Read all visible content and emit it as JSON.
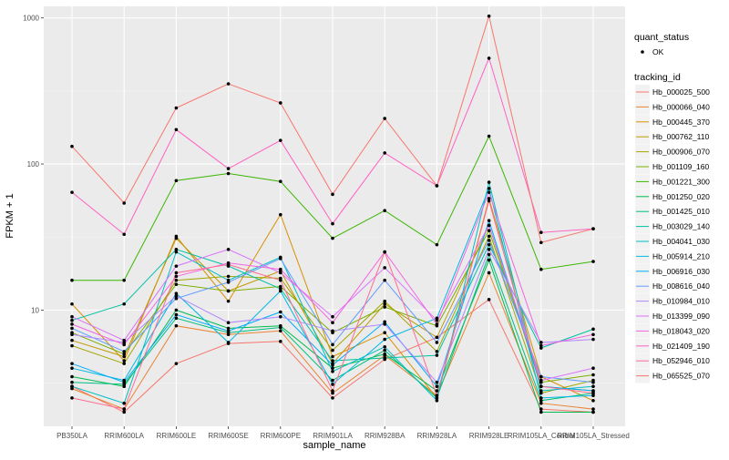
{
  "chart_data": {
    "type": "line",
    "xlabel": "sample_name",
    "ylabel": "FPKM + 1",
    "y_scale": "log10",
    "ylim": [
      1.6,
      1200
    ],
    "y_ticks": [
      {
        "value": 10,
        "label": "10"
      },
      {
        "value": 100,
        "label": "100"
      },
      {
        "value": 1000,
        "label": "1000"
      }
    ],
    "grid": true,
    "background": "#ebebeb",
    "categories": [
      "PB350LA",
      "RRIM600LA",
      "RRIM600LE",
      "RRIM600SE",
      "RRIM600PE",
      "RRIM901LA",
      "RRIM928BA",
      "RRIM928LA",
      "RRIM928LE",
      "RRIM105LA_Control",
      "RRIM105LA_Stressed"
    ],
    "legend_position": "right",
    "quant_status": {
      "title": "quant_status",
      "entries": [
        "OK"
      ]
    },
    "series_title": "tracking_id",
    "series": [
      {
        "name": "Hb_000025_500",
        "color": "#F8766D",
        "values": [
          3.0,
          2.0,
          4.3,
          5.9,
          6.1,
          2.5,
          4.6,
          6.5,
          11.8,
          2.1,
          2.0
        ]
      },
      {
        "name": "Hb_000066_040",
        "color": "#EA8331",
        "values": [
          2.9,
          2.1,
          7.8,
          6.8,
          7.2,
          2.7,
          4.9,
          2.6,
          18.0,
          2.3,
          2.1
        ]
      },
      {
        "name": "Hb_000445_370",
        "color": "#D89000",
        "values": [
          11.0,
          4.5,
          32.0,
          11.5,
          45.0,
          4.8,
          7.0,
          2.5,
          58.0,
          3.5,
          2.4
        ]
      },
      {
        "name": "Hb_000762_110",
        "color": "#C09B00",
        "values": [
          6.2,
          4.8,
          31.0,
          13.5,
          18.5,
          4.3,
          11.0,
          6.5,
          38.0,
          3.0,
          2.8
        ]
      },
      {
        "name": "Hb_000906_070",
        "color": "#A3A500",
        "values": [
          5.7,
          4.3,
          16.0,
          17.0,
          16.5,
          5.3,
          11.5,
          5.2,
          32.0,
          2.7,
          3.3
        ]
      },
      {
        "name": "Hb_001109_160",
        "color": "#7CAE00",
        "values": [
          7.0,
          5.0,
          15.0,
          13.5,
          14.5,
          7.0,
          10.5,
          7.8,
          35.0,
          3.2,
          3.6
        ]
      },
      {
        "name": "Hb_001221_300",
        "color": "#39B600",
        "values": [
          16.0,
          16.0,
          77.0,
          86.0,
          76.0,
          31.0,
          48.0,
          28.0,
          155.0,
          19.0,
          21.5
        ]
      },
      {
        "name": "Hb_001250_020",
        "color": "#00BB4E",
        "values": [
          3.5,
          3.0,
          10.0,
          7.5,
          7.8,
          4.0,
          5.0,
          2.8,
          22.0,
          2.0,
          2.0
        ]
      },
      {
        "name": "Hb_001425_010",
        "color": "#00BF7D",
        "values": [
          3.2,
          3.1,
          8.8,
          7.0,
          7.6,
          3.3,
          5.3,
          2.5,
          24.0,
          2.4,
          2.7
        ]
      },
      {
        "name": "Hb_003029_140",
        "color": "#00C1A3",
        "values": [
          8.5,
          11.0,
          26.0,
          20.0,
          14.0,
          4.5,
          4.7,
          4.9,
          28.0,
          5.5,
          7.4
        ]
      },
      {
        "name": "Hb_004041_030",
        "color": "#00BFC4",
        "values": [
          3.0,
          2.3,
          25.0,
          16.0,
          23.0,
          3.8,
          5.6,
          2.4,
          75.0,
          2.8,
          3.0
        ]
      },
      {
        "name": "Hb_005914_210",
        "color": "#00B9E3",
        "values": [
          4.0,
          3.3,
          13.0,
          6.0,
          13.5,
          3.1,
          6.3,
          8.8,
          68.0,
          2.5,
          2.6
        ]
      },
      {
        "name": "Hb_006916_030",
        "color": "#00ADFA",
        "values": [
          4.3,
          3.2,
          9.3,
          7.2,
          9.7,
          4.2,
          8.3,
          3.0,
          41.0,
          3.0,
          2.8
        ]
      },
      {
        "name": "Hb_008616_040",
        "color": "#619CFF",
        "values": [
          7.5,
          5.2,
          12.0,
          15.5,
          22.5,
          5.8,
          16.0,
          6.0,
          30.0,
          3.5,
          3.2
        ]
      },
      {
        "name": "Hb_010984_010",
        "color": "#AE87FF",
        "values": [
          6.8,
          6.0,
          12.5,
          8.2,
          9.0,
          7.2,
          8.0,
          3.2,
          26.0,
          6.0,
          6.3
        ]
      },
      {
        "name": "Hb_013399_090",
        "color": "#DB72FB",
        "values": [
          9.0,
          6.2,
          20.0,
          26.0,
          18.0,
          9.0,
          19.5,
          8.5,
          38.0,
          3.3,
          4.0
        ]
      },
      {
        "name": "Hb_018043_020",
        "color": "#F564E3",
        "values": [
          8.0,
          5.8,
          17.0,
          21.0,
          19.0,
          8.2,
          25.0,
          8.0,
          64.0,
          5.7,
          6.8
        ]
      },
      {
        "name": "Hb_021409_190",
        "color": "#FF61C3",
        "values": [
          64.0,
          33.0,
          172.0,
          93.0,
          145.0,
          39.0,
          119.0,
          71.0,
          530.0,
          34.0,
          36.0
        ]
      },
      {
        "name": "Hb_052946_010",
        "color": "#FF6C91",
        "values": [
          2.5,
          2.1,
          18.0,
          20.5,
          16.0,
          2.8,
          25.0,
          2.6,
          56.0,
          3.0,
          2.7
        ]
      },
      {
        "name": "Hb_065525_070",
        "color": "#F8766D",
        "values": [
          132.0,
          54.0,
          242.0,
          354.0,
          262.0,
          62.0,
          205.0,
          71.0,
          1030.0,
          29.0,
          36.0
        ]
      }
    ]
  }
}
